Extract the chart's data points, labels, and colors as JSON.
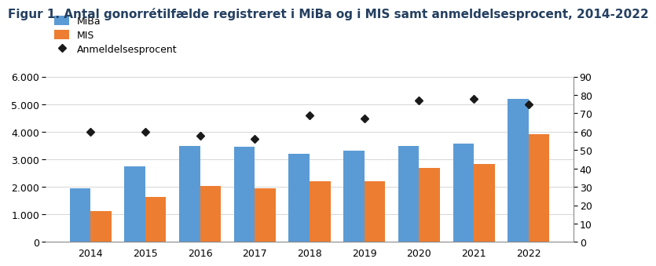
{
  "title": "Figur 1. Antal gonorrétilfælde registreret i MiBa og i MIS samt anmeldelsesprocent, 2014-2022",
  "years": [
    2014,
    2015,
    2016,
    2017,
    2018,
    2019,
    2020,
    2021,
    2022
  ],
  "miba": [
    1950,
    2750,
    3480,
    3450,
    3200,
    3300,
    3480,
    3570,
    5180
  ],
  "mis": [
    1130,
    1640,
    2020,
    1940,
    2190,
    2200,
    2680,
    2820,
    3920
  ],
  "anmeld": [
    60,
    60,
    58,
    56,
    69,
    67,
    77,
    78,
    75
  ],
  "miba_color": "#5B9BD5",
  "mis_color": "#ED7D31",
  "anmeld_color": "#1a1a1a",
  "ylim_left": [
    0,
    6000
  ],
  "ylim_right": [
    0,
    90
  ],
  "yticks_left": [
    0,
    1000,
    2000,
    3000,
    4000,
    5000,
    6000
  ],
  "yticks_right": [
    0,
    10,
    20,
    30,
    40,
    50,
    60,
    70,
    80,
    90
  ],
  "legend_labels": [
    "MiBa",
    "MIS",
    "Anmeldelsesprocent"
  ],
  "title_fontsize": 11,
  "title_color": "#243F60",
  "axis_fontsize": 9,
  "bar_width": 0.38
}
